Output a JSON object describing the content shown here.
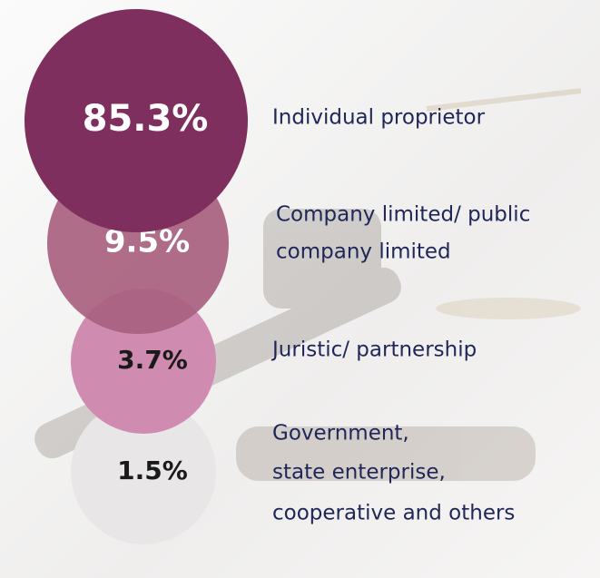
{
  "chart_data": {
    "type": "circles",
    "categories": [
      [
        "Individual proprietor"
      ],
      [
        "Company limited/ public",
        "company limited"
      ],
      [
        "Juristic/ partnership"
      ],
      [
        "Government,",
        "state enterprise,",
        "cooperative and others"
      ]
    ],
    "values": [
      85.3,
      9.5,
      3.7,
      1.5
    ],
    "value_labels": [
      "85.3%",
      "9.5%",
      "3.7%",
      "1.5%"
    ],
    "colors": [
      "#7f2f5e",
      "#a8617f",
      "#cf8bb0",
      "#e9e6e8"
    ]
  }
}
